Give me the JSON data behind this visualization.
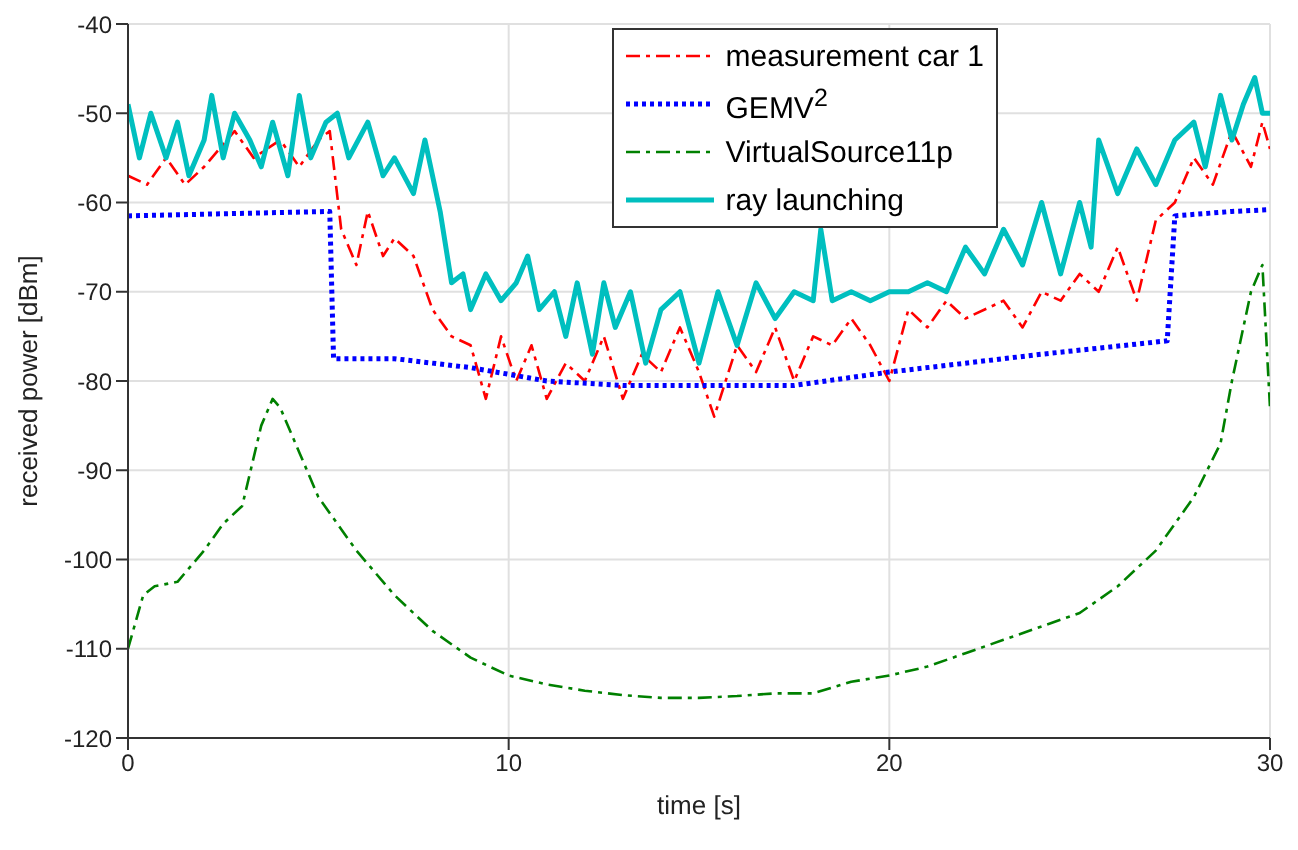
{
  "chart_data": {
    "type": "line",
    "xlabel": "time [s]",
    "ylabel": "received power [dBm]",
    "xlim": [
      0,
      30
    ],
    "xticks": [
      0,
      10,
      20,
      30
    ],
    "ylim": [
      -120,
      -40
    ],
    "yticks": [
      -120,
      -110,
      -100,
      -90,
      -80,
      -70,
      -60,
      -50,
      -40
    ],
    "grid": true,
    "legend": "top right",
    "marker": "none",
    "series": [
      {
        "name": "measurement car 1",
        "color": "#ff0000",
        "line_style": "dashed",
        "x": [
          0,
          0.5,
          1,
          1.5,
          2,
          2.8,
          3.3,
          4,
          4.5,
          5,
          5.3,
          5.6,
          6,
          6.3,
          6.7,
          7,
          7.5,
          8,
          8.5,
          9,
          9.4,
          9.8,
          10.2,
          10.6,
          11,
          11.5,
          12,
          12.5,
          13,
          13.5,
          14,
          14.5,
          15,
          15.4,
          16,
          16.5,
          17,
          17.5,
          18,
          18.5,
          19,
          19.5,
          20,
          20.5,
          21,
          21.5,
          22,
          23,
          23.5,
          24,
          24.5,
          25,
          25.5,
          26,
          26.5,
          27,
          27.5,
          28,
          28.5,
          29,
          29.5,
          29.8,
          30
        ],
        "values": [
          -57,
          -58,
          -55,
          -58,
          -56,
          -52,
          -55,
          -53,
          -56,
          -53,
          -52,
          -63,
          -67,
          -61,
          -66,
          -64,
          -66,
          -72,
          -75,
          -76,
          -82,
          -75,
          -80,
          -76,
          -82,
          -78,
          -80,
          -75,
          -82,
          -77,
          -79,
          -74,
          -79,
          -84,
          -76,
          -79,
          -74,
          -80,
          -75,
          -76,
          -73,
          -76,
          -80,
          -72,
          -74,
          -71,
          -73,
          -71,
          -74,
          -70,
          -71,
          -68,
          -70,
          -65,
          -71,
          -62,
          -60,
          -55,
          -58,
          -52,
          -56,
          -51,
          -54
        ]
      },
      {
        "name": "GEMV$^{2}$",
        "color": "#0000ff",
        "line_style": "dotted",
        "x": [
          0,
          5.3,
          5.4,
          7,
          9,
          11,
          13,
          15,
          17.5,
          20,
          22,
          24,
          27.3,
          27.5,
          29,
          30
        ],
        "values": [
          -61.5,
          -61,
          -77.5,
          -77.5,
          -78.5,
          -80,
          -80.5,
          -80.5,
          -80.5,
          -79,
          -78,
          -77,
          -75.5,
          -61.5,
          -61,
          -60.8
        ]
      },
      {
        "name": "VirtualSource11p",
        "color": "#008000",
        "line_style": "dashed",
        "x": [
          0,
          0.4,
          0.7,
          1.3,
          2,
          2.5,
          3,
          3.5,
          3.8,
          4,
          4.5,
          5,
          6,
          7,
          8,
          9,
          10,
          11,
          12,
          13,
          14,
          15,
          16,
          17,
          18,
          19,
          20,
          21,
          22,
          23,
          24,
          25,
          26,
          27,
          28,
          28.7,
          29,
          29.5,
          29.8,
          30
        ],
        "values": [
          -110,
          -104,
          -103,
          -102.5,
          -99,
          -96,
          -94,
          -85,
          -82,
          -83,
          -88,
          -93,
          -99,
          -104,
          -108,
          -111,
          -113,
          -114,
          -114.7,
          -115.2,
          -115.5,
          -115.5,
          -115.3,
          -115,
          -115,
          -113.7,
          -113,
          -112,
          -110.5,
          -109,
          -107.5,
          -106,
          -103,
          -99,
          -93,
          -87,
          -80,
          -70,
          -67,
          -83
        ]
      },
      {
        "name": "ray launching",
        "color": "#00bfbf",
        "line_style": "solid",
        "x": [
          0,
          0.3,
          0.6,
          1,
          1.3,
          1.6,
          2,
          2.2,
          2.5,
          2.8,
          3.2,
          3.5,
          3.8,
          4.2,
          4.5,
          4.8,
          5.2,
          5.5,
          5.8,
          6.3,
          6.7,
          7,
          7.5,
          7.8,
          8.2,
          8.5,
          8.8,
          9,
          9.4,
          9.8,
          10.2,
          10.5,
          10.8,
          11.2,
          11.5,
          11.8,
          12.2,
          12.5,
          12.8,
          13.2,
          13.6,
          14,
          14.5,
          15,
          15.5,
          16,
          16.5,
          17,
          17.5,
          18,
          18.2,
          18.5,
          19,
          19.5,
          20,
          20.5,
          21,
          21.5,
          22,
          22.5,
          23,
          23.5,
          24,
          24.5,
          25,
          25.3,
          25.5,
          26,
          26.5,
          27,
          27.5,
          28,
          28.3,
          28.7,
          29,
          29.3,
          29.6,
          29.8,
          30
        ],
        "values": [
          -49,
          -55,
          -50,
          -55,
          -51,
          -57,
          -53,
          -48,
          -55,
          -50,
          -53,
          -56,
          -51,
          -57,
          -48,
          -55,
          -51,
          -50,
          -55,
          -51,
          -57,
          -55,
          -59,
          -53,
          -61,
          -69,
          -68,
          -72,
          -68,
          -71,
          -69,
          -66,
          -72,
          -70,
          -75,
          -69,
          -77,
          -69,
          -74,
          -70,
          -78,
          -72,
          -70,
          -78,
          -70,
          -76,
          -69,
          -73,
          -70,
          -71,
          -63,
          -71,
          -70,
          -71,
          -70,
          -70,
          -69,
          -70,
          -65,
          -68,
          -63,
          -67,
          -60,
          -68,
          -60,
          -65,
          -53,
          -59,
          -54,
          -58,
          -53,
          -51,
          -56,
          -48,
          -53,
          -49,
          -46,
          -50,
          -50
        ]
      }
    ]
  }
}
